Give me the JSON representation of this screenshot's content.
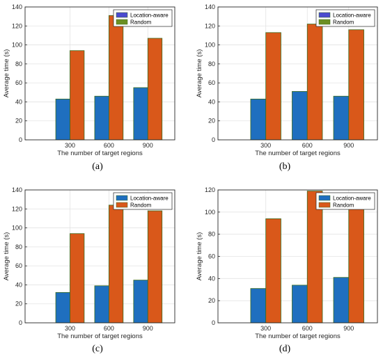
{
  "colors": {
    "location_aware": "#1f6fbf",
    "random": "#d9581a",
    "bar_edge": "#3a6b1e",
    "grid": "#e3e3e3",
    "axis": "#262626",
    "legend_swatch_blue": "#4b4bd0",
    "legend_swatch_green": "#6b8f23"
  },
  "chart_data": [
    {
      "type": "bar",
      "panel_label": "(a)",
      "categories": [
        "300",
        "600",
        "900"
      ],
      "xlabel": "The number of target regions",
      "ylabel": "Average time (s)",
      "ylim": [
        0,
        140
      ],
      "yticks": [
        0,
        20,
        40,
        60,
        80,
        100,
        120,
        140
      ],
      "grid": true,
      "legend_position": "top-right",
      "legend_swatches": [
        "legend_swatch_blue",
        "legend_swatch_green"
      ],
      "series": [
        {
          "name": "Location-aware",
          "values": [
            43,
            46,
            55
          ]
        },
        {
          "name": "Random",
          "values": [
            94,
            131,
            107
          ]
        }
      ]
    },
    {
      "type": "bar",
      "panel_label": "(b)",
      "categories": [
        "300",
        "600",
        "900"
      ],
      "xlabel": "The number of target regions",
      "ylabel": "Average time (s)",
      "ylim": [
        0,
        140
      ],
      "yticks": [
        0,
        20,
        40,
        60,
        80,
        100,
        120,
        140
      ],
      "grid": true,
      "legend_position": "top-right",
      "legend_swatches": [
        "legend_swatch_blue",
        "legend_swatch_green"
      ],
      "series": [
        {
          "name": "Location-aware",
          "values": [
            43,
            51,
            46
          ]
        },
        {
          "name": "Random",
          "values": [
            113,
            122,
            116
          ]
        }
      ]
    },
    {
      "type": "bar",
      "panel_label": "(c)",
      "categories": [
        "300",
        "600",
        "900"
      ],
      "xlabel": "The number of target regions",
      "ylabel": "Average time (s)",
      "ylim": [
        0,
        140
      ],
      "yticks": [
        0,
        20,
        40,
        60,
        80,
        100,
        120,
        140
      ],
      "grid": true,
      "legend_position": "top-right",
      "legend_swatches": [
        "location_aware",
        "random"
      ],
      "series": [
        {
          "name": "Location-aware",
          "values": [
            32,
            39,
            45
          ]
        },
        {
          "name": "Random",
          "values": [
            94,
            124,
            118
          ]
        }
      ]
    },
    {
      "type": "bar",
      "panel_label": "(d)",
      "categories": [
        "300",
        "600",
        "900"
      ],
      "xlabel": "The number of target regions",
      "ylabel": "Average time (s)",
      "ylim": [
        0,
        120
      ],
      "yticks": [
        0,
        20,
        40,
        60,
        80,
        100,
        120
      ],
      "grid": true,
      "legend_position": "top-right",
      "legend_swatches": [
        "location_aware",
        "random"
      ],
      "series": [
        {
          "name": "Location-aware",
          "values": [
            31,
            34,
            41
          ]
        },
        {
          "name": "Random",
          "values": [
            94,
            119,
            107
          ]
        }
      ]
    }
  ]
}
